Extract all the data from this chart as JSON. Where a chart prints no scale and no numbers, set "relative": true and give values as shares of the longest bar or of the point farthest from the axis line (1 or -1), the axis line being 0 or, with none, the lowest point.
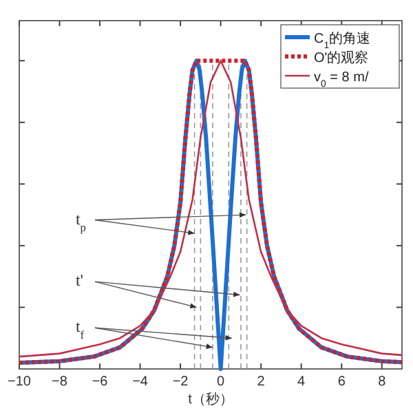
{
  "chart_data": {
    "type": "line",
    "relative": true,
    "xlabel": "t（秒）",
    "xlim": [
      -10,
      9
    ],
    "xticks": [
      -10,
      -8,
      -6,
      -4,
      -2,
      0,
      2,
      4,
      6,
      8
    ],
    "legend": "top right",
    "grid": false,
    "annotations": [
      "t$_{p}$",
      "t'",
      "t$_{f}$"
    ],
    "ref_lines": [
      {
        "axis": "x",
        "value": -1.3,
        "color": "#999999",
        "line_style": "dashed"
      },
      {
        "axis": "x",
        "value": -1.0,
        "color": "#999999",
        "line_style": "dashed"
      },
      {
        "axis": "x",
        "value": -0.4,
        "color": "#999999",
        "line_style": "dashed"
      },
      {
        "axis": "x",
        "value": 0.4,
        "color": "#999999",
        "line_style": "dashed"
      },
      {
        "axis": "x",
        "value": 1.0,
        "color": "#999999",
        "line_style": "dashed"
      },
      {
        "axis": "x",
        "value": 1.3,
        "color": "#999999",
        "line_style": "dashed"
      }
    ],
    "series": [
      {
        "name": "C$_{1}$的角速",
        "color": "#1f6fd0",
        "line_style": "solid",
        "x": [
          -10,
          -8,
          -6.3,
          -5,
          -3.9,
          -3.3,
          -2.65,
          -2.3,
          -2,
          -1.75,
          -1.55,
          -1.4,
          -1.2,
          -1.05,
          -0.91,
          -0.73,
          -0.5,
          -0.25,
          0,
          0.25,
          0.5,
          0.73,
          0.91,
          1.05,
          1.2,
          1.4,
          1.55,
          1.75,
          2,
          2.3,
          2.65,
          3.3,
          3.9,
          5,
          6.3,
          8,
          9
        ],
        "values": [
          0.02,
          0.025,
          0.04,
          0.07,
          0.13,
          0.19,
          0.3,
          0.4,
          0.54,
          0.75,
          0.89,
          0.97,
          1,
          0.97,
          0.89,
          0.75,
          0.52,
          0.26,
          0,
          0.26,
          0.52,
          0.75,
          0.89,
          0.97,
          1,
          0.97,
          0.89,
          0.75,
          0.54,
          0.4,
          0.3,
          0.19,
          0.13,
          0.07,
          0.04,
          0.025,
          0.022
        ]
      },
      {
        "name": "O'的观察",
        "color": "#d0202a",
        "line_style": "dotted",
        "x": [
          -10,
          -8,
          -6.3,
          -5,
          -3.9,
          -3.3,
          -2.65,
          -2.3,
          -2,
          -1.75,
          -1.55,
          -1.4,
          -1.2,
          1.2,
          1.4,
          1.55,
          1.75,
          2,
          2.3,
          2.65,
          3.3,
          3.9,
          5,
          6.3,
          8,
          9
        ],
        "values": [
          0.02,
          0.025,
          0.04,
          0.07,
          0.13,
          0.19,
          0.3,
          0.4,
          0.54,
          0.75,
          0.89,
          0.97,
          1,
          1,
          0.97,
          0.89,
          0.75,
          0.54,
          0.4,
          0.3,
          0.19,
          0.13,
          0.07,
          0.04,
          0.025,
          0.022
        ]
      },
      {
        "name": "v$_{0}$ = 8 m/",
        "color": "#c0304a",
        "line_style": "solid",
        "x": [
          -10,
          -8,
          -6,
          -5,
          -4,
          -3.3,
          -3,
          -2.5,
          -2,
          -1.4,
          -1,
          -0.5,
          0,
          0.5,
          1,
          1.4,
          2,
          2.5,
          3,
          3.3,
          4,
          5,
          6,
          8,
          9
        ],
        "values": [
          0.04,
          0.05,
          0.08,
          0.1,
          0.14,
          0.19,
          0.23,
          0.3,
          0.38,
          0.55,
          0.75,
          0.93,
          1,
          0.93,
          0.75,
          0.55,
          0.38,
          0.3,
          0.23,
          0.19,
          0.14,
          0.1,
          0.08,
          0.05,
          0.045
        ]
      }
    ]
  }
}
